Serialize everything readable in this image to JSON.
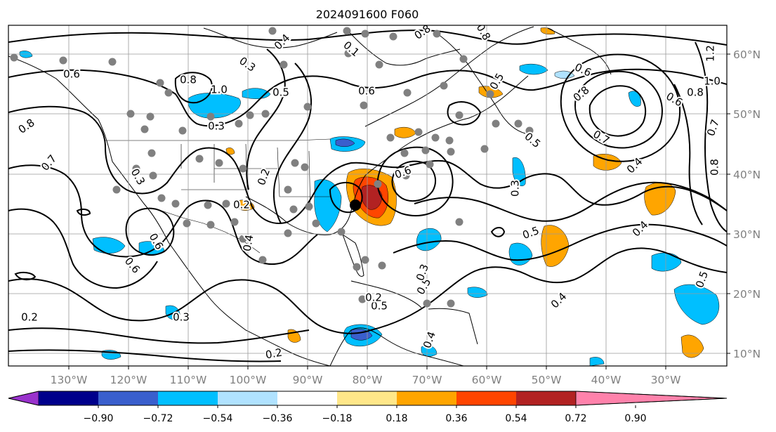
{
  "title": "2024091600 F060",
  "longitude_labels": [
    "130°W",
    "120°W",
    "110°W",
    "100°W",
    "90°W",
    "80°W",
    "70°W",
    "60°W",
    "50°W",
    "40°W",
    "30°W"
  ],
  "latitude_labels": [
    "60°N",
    "50°N",
    "40°N",
    "30°N",
    "20°N",
    "10°N"
  ],
  "colorbar": {
    "tick_labels": [
      "−0.90",
      "−0.72",
      "−0.54",
      "−0.36",
      "−0.18",
      "0.18",
      "0.36",
      "0.54",
      "0.72",
      "0.90"
    ],
    "colors": [
      "#9932cc",
      "#00008b",
      "#3a5fcd",
      "#00bfff",
      "#b0e2ff",
      "#ffffff",
      "#ffe789",
      "#ffa500",
      "#ff4500",
      "#b22222",
      "#ff82ab"
    ]
  },
  "contour_labels": [
    "0.6",
    "0.8",
    "0.7",
    "0.3",
    "0.8",
    "1.0",
    "0.4",
    "0.3",
    "0.5",
    "0.6",
    "0.1",
    "0.8",
    "0.8",
    "0.5",
    "0.6",
    "0.8",
    "1.2",
    "1.0",
    "0.8",
    "0.7",
    "0.6",
    "0.5",
    "0.7",
    "0.4",
    "0.4",
    "0.5",
    "0.4",
    "0.3",
    "0.2",
    "0.2",
    "0.3",
    "0.2",
    "0.5",
    "0.6",
    "0.5",
    "0.2",
    "0.3",
    "0.4",
    "0.2",
    "0.3",
    "0.6",
    "0.4",
    "0.6",
    "0.8",
    "0.5"
  ],
  "map_features": {
    "contour_color": "#000000",
    "grid_color": "#9a9a9a",
    "station_color": "#808080",
    "low_center": "black-dot"
  }
}
